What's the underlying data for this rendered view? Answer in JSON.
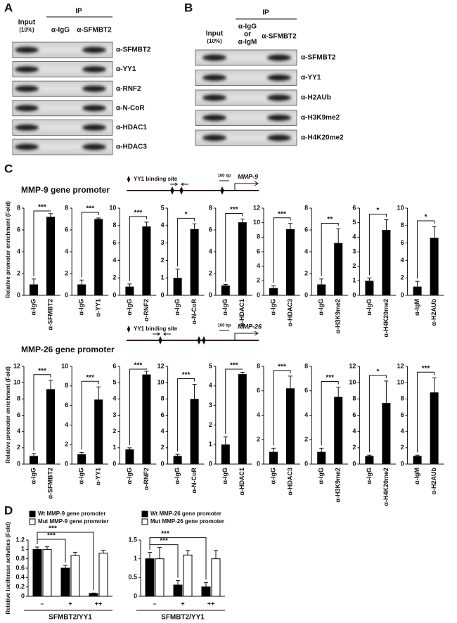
{
  "panel_a": {
    "letter": "A",
    "input": "Input",
    "input_pct": "(10%)",
    "ip": "IP",
    "lanes": [
      "α-IgG",
      "α-SFMBT2"
    ],
    "rows": [
      "α-SFMBT2",
      "α-YY1",
      "α-RNF2",
      "α-N-CoR",
      "α-HDAC1",
      "α-HDAC3"
    ]
  },
  "panel_b": {
    "letter": "B",
    "input": "Input",
    "input_pct": "(10%)",
    "ip": "IP",
    "control_lane": [
      "α-IgG",
      "or",
      "α-IgM"
    ],
    "ip_lane": "α-SFMBT2",
    "rows": [
      "α-SFMBT2",
      "α-YY1",
      "α-H2AUb",
      "α-H3K9me2",
      "α-H4K20me2"
    ]
  },
  "panel_c": {
    "letter": "C",
    "promoters": [
      {
        "title": "MMP-9 gene promoter",
        "site_legend": "YY1 binding site",
        "scale": "100 bp",
        "gene": "MMP-9",
        "y_label": "Relative promoter enrichment (Fold)"
      },
      {
        "title": "MMP-26 gene promoter",
        "site_legend": "YY1 binding site",
        "scale": "100 bp",
        "gene": "MMP-26",
        "y_label": "Relative promoter enrichment (Fold)"
      }
    ]
  },
  "panel_d": {
    "letter": "D"
  },
  "chart_data": [
    {
      "type": "bar",
      "categories": [
        "α-IgG",
        "α-SFMBT2"
      ],
      "values": [
        1.0,
        7.2
      ],
      "errors": [
        0.5,
        0.3
      ],
      "ylim": [
        0,
        8
      ],
      "yticks": [
        0,
        2,
        4,
        6,
        8
      ],
      "color": "#000000",
      "significance": "***"
    },
    {
      "type": "bar",
      "categories": [
        "α-IgG",
        "α-YY1"
      ],
      "values": [
        1.0,
        7.0
      ],
      "errors": [
        0.4,
        0.1
      ],
      "ylim": [
        0,
        8
      ],
      "yticks": [
        0,
        2,
        4,
        6,
        8
      ],
      "color": "#000000",
      "significance": "***"
    },
    {
      "type": "bar",
      "categories": [
        "α-IgG",
        "α-RNF2"
      ],
      "values": [
        1.0,
        7.9
      ],
      "errors": [
        0.3,
        0.5
      ],
      "ylim": [
        0,
        10
      ],
      "yticks": [
        0,
        2,
        4,
        6,
        8,
        10
      ],
      "color": "#000000",
      "significance": "***"
    },
    {
      "type": "bar",
      "categories": [
        "α-IgG",
        "α-N-CoR"
      ],
      "values": [
        1.0,
        3.8
      ],
      "errors": [
        0.5,
        0.3
      ],
      "ylim": [
        0,
        5
      ],
      "yticks": [
        0,
        1,
        2,
        3,
        4,
        5
      ],
      "color": "#000000",
      "significance": "*"
    },
    {
      "type": "bar",
      "categories": [
        "α-IgG",
        "α-HDAC1"
      ],
      "values": [
        0.9,
        6.7
      ],
      "errors": [
        0.1,
        0.3
      ],
      "ylim": [
        0,
        8
      ],
      "yticks": [
        0,
        2,
        4,
        6,
        8
      ],
      "color": "#000000",
      "significance": "***"
    },
    {
      "type": "bar",
      "categories": [
        "α-IgG",
        "α-HDAC3"
      ],
      "values": [
        1.0,
        9.1
      ],
      "errors": [
        0.3,
        0.8
      ],
      "ylim": [
        0,
        12
      ],
      "yticks": [
        0,
        2,
        4,
        6,
        8,
        10,
        12
      ],
      "color": "#000000",
      "significance": "***"
    },
    {
      "type": "bar",
      "categories": [
        "α-IgG",
        "α-H3K9me2"
      ],
      "values": [
        1.0,
        4.8
      ],
      "errors": [
        0.5,
        1.3
      ],
      "ylim": [
        0,
        8
      ],
      "yticks": [
        0,
        2,
        4,
        6,
        8
      ],
      "color": "#000000",
      "significance": "**"
    },
    {
      "type": "bar",
      "categories": [
        "α-IgG",
        "α-H4K20me2"
      ],
      "values": [
        1.0,
        4.5
      ],
      "errors": [
        0.2,
        0.7
      ],
      "ylim": [
        0,
        6
      ],
      "yticks": [
        0,
        1,
        2,
        3,
        4,
        5,
        6
      ],
      "color": "#000000",
      "significance": "*"
    },
    {
      "type": "bar",
      "categories": [
        "α-IgM",
        "α-H2AUb"
      ],
      "values": [
        1.0,
        6.6
      ],
      "errors": [
        0.6,
        1.3
      ],
      "ylim": [
        0,
        10
      ],
      "yticks": [
        0,
        2,
        4,
        6,
        8,
        10
      ],
      "color": "#000000",
      "significance": "*"
    },
    {
      "type": "bar",
      "categories": [
        "α-IgG",
        "α-SFMBT2"
      ],
      "values": [
        1.0,
        9.2
      ],
      "errors": [
        0.3,
        1.1
      ],
      "ylim": [
        0,
        12
      ],
      "yticks": [
        0,
        2,
        4,
        6,
        8,
        10,
        12
      ],
      "color": "#000000",
      "significance": "***"
    },
    {
      "type": "bar",
      "categories": [
        "α-IgG",
        "α-YY1"
      ],
      "values": [
        1.0,
        6.6
      ],
      "errors": [
        0.2,
        1.3
      ],
      "ylim": [
        0,
        10
      ],
      "yticks": [
        0,
        2,
        4,
        6,
        8,
        10
      ],
      "color": "#000000",
      "significance": "***"
    },
    {
      "type": "bar",
      "categories": [
        "α-IgG",
        "α-RNF2"
      ],
      "values": [
        0.9,
        5.5
      ],
      "errors": [
        0.1,
        0.2
      ],
      "ylim": [
        0,
        6
      ],
      "yticks": [
        0,
        1,
        2,
        3,
        4,
        5,
        6
      ],
      "color": "#000000",
      "significance": "***"
    },
    {
      "type": "bar",
      "categories": [
        "α-IgG",
        "α-N-CoR"
      ],
      "values": [
        1.0,
        8.0
      ],
      "errors": [
        0.2,
        1.8
      ],
      "ylim": [
        0,
        12
      ],
      "yticks": [
        0,
        2,
        4,
        6,
        8,
        10,
        12
      ],
      "color": "#000000",
      "significance": "***"
    },
    {
      "type": "bar",
      "categories": [
        "α-IgG",
        "α-HDAC1"
      ],
      "values": [
        1.0,
        4.6
      ],
      "errors": [
        0.4,
        0.1
      ],
      "ylim": [
        0,
        5
      ],
      "yticks": [
        0,
        1,
        2,
        3,
        4,
        5
      ],
      "color": "#000000",
      "significance": "***"
    },
    {
      "type": "bar",
      "categories": [
        "α-IgG",
        "α-HDAC3"
      ],
      "values": [
        1.0,
        6.2
      ],
      "errors": [
        0.3,
        1.0
      ],
      "ylim": [
        0,
        8
      ],
      "yticks": [
        0,
        2,
        4,
        6,
        8
      ],
      "color": "#000000",
      "significance": "***"
    },
    {
      "type": "bar",
      "categories": [
        "α-IgG",
        "α-H3K9me2"
      ],
      "values": [
        1.0,
        5.5
      ],
      "errors": [
        0.3,
        0.8
      ],
      "ylim": [
        0,
        8
      ],
      "yticks": [
        0,
        2,
        4,
        6,
        8
      ],
      "color": "#000000",
      "significance": "***"
    },
    {
      "type": "bar",
      "categories": [
        "α-IgG",
        "α-H4K20me2"
      ],
      "values": [
        1.0,
        7.5
      ],
      "errors": [
        0.1,
        2.7
      ],
      "ylim": [
        0,
        12
      ],
      "yticks": [
        0,
        2,
        4,
        6,
        8,
        10,
        12
      ],
      "color": "#000000",
      "significance": "*"
    },
    {
      "type": "bar",
      "categories": [
        "α-IgM",
        "α-H2AUb"
      ],
      "values": [
        1.0,
        8.8
      ],
      "errors": [
        0.1,
        1.8
      ],
      "ylim": [
        0,
        12
      ],
      "yticks": [
        0,
        2,
        4,
        6,
        8,
        10,
        12
      ],
      "color": "#000000",
      "significance": "***"
    },
    {
      "type": "grouped_bar",
      "y_label": "Relative luciferase activities (Fold)",
      "x_label": "SFMBT2/YY1",
      "categories": [
        "–",
        "+",
        "++"
      ],
      "series": [
        {
          "name": "Wt MMP-9 gene promoter",
          "color": "#000000",
          "values": [
            1.0,
            0.6,
            0.06
          ],
          "errors": [
            0.05,
            0.06,
            0.01
          ]
        },
        {
          "name": "Mut MMP-9 gene promoter",
          "color": "#ffffff",
          "values": [
            1.0,
            0.87,
            0.92
          ],
          "errors": [
            0.06,
            0.07,
            0.06
          ]
        }
      ],
      "ylim": [
        0,
        1.2
      ],
      "yticks": [
        0,
        0.2,
        0.4,
        0.6,
        0.8,
        1,
        1.2
      ],
      "significance": [
        "***",
        "***"
      ]
    },
    {
      "type": "grouped_bar",
      "x_label": "SFMBT2/YY1",
      "categories": [
        "–",
        "+",
        "++"
      ],
      "series": [
        {
          "name": "Wt MMP-26 gene promoter",
          "color": "#000000",
          "values": [
            1.0,
            0.3,
            0.25
          ],
          "errors": [
            0.17,
            0.12,
            0.12
          ]
        },
        {
          "name": "Mut MMP-26 gene promoter",
          "color": "#ffffff",
          "values": [
            1.0,
            1.1,
            1.0
          ],
          "errors": [
            0.3,
            0.12,
            0.22
          ]
        }
      ],
      "ylim": [
        0,
        1.5
      ],
      "yticks": [
        0,
        0.5,
        1,
        1.5
      ],
      "significance": [
        "***",
        "***"
      ]
    }
  ]
}
